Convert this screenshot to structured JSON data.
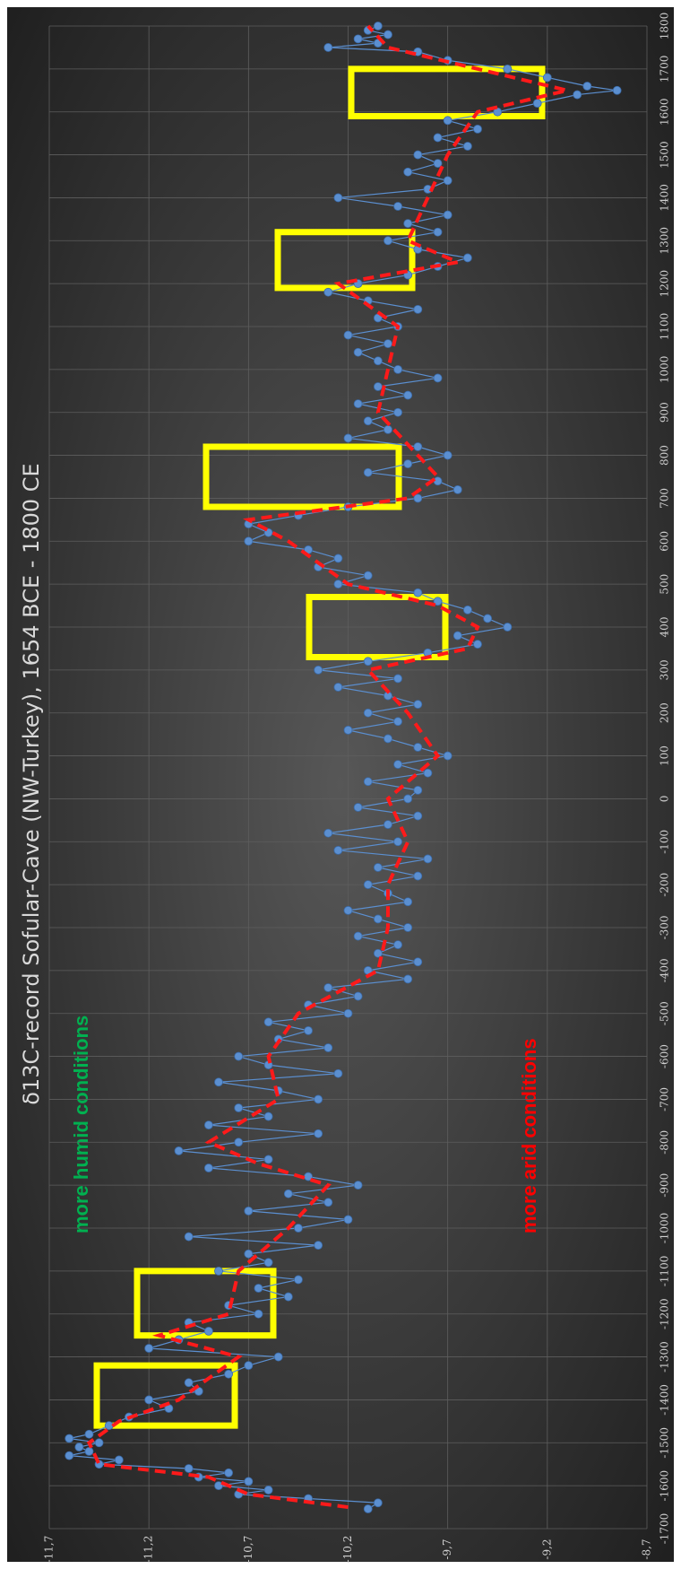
{
  "chart_data": {
    "type": "line",
    "title": "δ13C-record Sofular-Cave (NW-Turkey),  1654 BCE - 1800 CE",
    "annotations": [
      "more humid conditions",
      "more arid conditions"
    ],
    "xlim": [
      -1700,
      1800
    ],
    "xticks": [
      -1700,
      -1600,
      -1500,
      -1400,
      -1300,
      -1200,
      -1100,
      -1000,
      -900,
      -800,
      -700,
      -600,
      -500,
      -400,
      -300,
      -200,
      -100,
      0,
      100,
      200,
      300,
      400,
      500,
      600,
      700,
      800,
      900,
      1000,
      1100,
      1200,
      1300,
      1400,
      1500,
      1600,
      1700,
      1800
    ],
    "ylim": [
      -11.7,
      -8.7
    ],
    "y_reversed": true,
    "yticks": [
      {
        "value": -11.7,
        "label": "-11,7"
      },
      {
        "value": -11.2,
        "label": "-11,2"
      },
      {
        "value": -10.7,
        "label": "-10,7"
      },
      {
        "value": -10.2,
        "label": "-10,2"
      },
      {
        "value": -9.7,
        "label": "-9,7"
      },
      {
        "value": -9.2,
        "label": "-9,2"
      },
      {
        "value": -8.7,
        "label": "-8,7"
      }
    ],
    "grid": true,
    "series": [
      {
        "color": "#5b8fd0",
        "markers": true,
        "dashed": false,
        "x": [
          -1654,
          -1640,
          -1630,
          -1620,
          -1610,
          -1600,
          -1590,
          -1580,
          -1570,
          -1560,
          -1550,
          -1540,
          -1530,
          -1520,
          -1510,
          -1500,
          -1490,
          -1480,
          -1460,
          -1440,
          -1420,
          -1400,
          -1380,
          -1360,
          -1340,
          -1320,
          -1300,
          -1280,
          -1260,
          -1240,
          -1220,
          -1200,
          -1180,
          -1160,
          -1140,
          -1120,
          -1100,
          -1080,
          -1060,
          -1040,
          -1020,
          -1000,
          -980,
          -960,
          -940,
          -920,
          -900,
          -880,
          -860,
          -840,
          -820,
          -800,
          -780,
          -760,
          -740,
          -720,
          -700,
          -680,
          -660,
          -640,
          -620,
          -600,
          -580,
          -560,
          -540,
          -520,
          -500,
          -480,
          -460,
          -440,
          -420,
          -400,
          -380,
          -360,
          -340,
          -320,
          -300,
          -280,
          -260,
          -240,
          -220,
          -200,
          -180,
          -160,
          -140,
          -120,
          -100,
          -80,
          -60,
          -40,
          -20,
          0,
          20,
          40,
          60,
          80,
          100,
          120,
          140,
          160,
          180,
          200,
          220,
          240,
          260,
          280,
          300,
          320,
          340,
          360,
          380,
          400,
          420,
          440,
          460,
          480,
          500,
          520,
          540,
          560,
          580,
          600,
          620,
          640,
          660,
          680,
          700,
          720,
          740,
          760,
          780,
          800,
          820,
          840,
          860,
          880,
          900,
          920,
          940,
          960,
          980,
          1000,
          1020,
          1040,
          1060,
          1080,
          1100,
          1120,
          1140,
          1160,
          1180,
          1200,
          1220,
          1240,
          1260,
          1280,
          1300,
          1320,
          1340,
          1360,
          1380,
          1400,
          1420,
          1440,
          1460,
          1480,
          1500,
          1520,
          1540,
          1560,
          1580,
          1600,
          1620,
          1640,
          1650,
          1660,
          1680,
          1700,
          1720,
          1740,
          1750,
          1760,
          1770,
          1780,
          1790,
          1800
        ],
        "values": [
          -10.1,
          -10.05,
          -10.4,
          -10.75,
          -10.6,
          -10.85,
          -10.7,
          -10.95,
          -10.8,
          -11.0,
          -11.45,
          -11.35,
          -11.6,
          -11.5,
          -11.55,
          -11.45,
          -11.6,
          -11.5,
          -11.4,
          -11.3,
          -11.1,
          -11.2,
          -10.95,
          -11.0,
          -10.8,
          -10.7,
          -10.55,
          -11.2,
          -11.05,
          -10.9,
          -11.0,
          -10.65,
          -10.8,
          -10.5,
          -10.65,
          -10.45,
          -10.85,
          -10.6,
          -10.7,
          -10.35,
          -11.0,
          -10.45,
          -10.2,
          -10.7,
          -10.3,
          -10.5,
          -10.15,
          -10.4,
          -10.9,
          -10.6,
          -11.05,
          -10.75,
          -10.35,
          -10.9,
          -10.6,
          -10.75,
          -10.35,
          -10.55,
          -10.85,
          -10.25,
          -10.6,
          -10.75,
          -10.3,
          -10.55,
          -10.4,
          -10.6,
          -10.2,
          -10.4,
          -10.15,
          -10.3,
          -9.9,
          -10.1,
          -9.85,
          -10.05,
          -9.95,
          -10.15,
          -9.9,
          -10.05,
          -10.2,
          -9.9,
          -10.0,
          -10.1,
          -9.85,
          -10.05,
          -9.8,
          -10.25,
          -9.95,
          -10.3,
          -10.0,
          -9.85,
          -10.15,
          -9.9,
          -9.85,
          -10.1,
          -9.8,
          -9.95,
          -9.7,
          -9.85,
          -10.0,
          -10.2,
          -9.95,
          -10.1,
          -9.85,
          -10.0,
          -10.25,
          -9.95,
          -10.35,
          -10.1,
          -9.8,
          -9.55,
          -9.65,
          -9.4,
          -9.5,
          -9.6,
          -9.75,
          -9.85,
          -10.25,
          -10.1,
          -10.35,
          -10.25,
          -10.4,
          -10.7,
          -10.6,
          -10.7,
          -10.45,
          -10.2,
          -9.85,
          -9.65,
          -9.75,
          -10.1,
          -9.9,
          -9.7,
          -9.85,
          -10.2,
          -10.0,
          -10.1,
          -9.95,
          -10.15,
          -9.9,
          -10.05,
          -9.75,
          -9.95,
          -10.05,
          -10.15,
          -10.0,
          -10.2,
          -9.95,
          -10.05,
          -9.85,
          -10.1,
          -10.3,
          -10.15,
          -9.9,
          -9.75,
          -9.6,
          -9.85,
          -10.0,
          -9.75,
          -9.9,
          -9.7,
          -9.95,
          -10.25,
          -9.8,
          -9.7,
          -9.9,
          -9.75,
          -9.85,
          -9.6,
          -9.75,
          -9.55,
          -9.7,
          -9.45,
          -9.25,
          -9.05,
          -8.85,
          -9.0,
          -9.2,
          -9.4,
          -9.7,
          -9.85,
          -10.3,
          -10.05,
          -10.15,
          -10.0,
          -10.1,
          -10.05
        ]
      },
      {
        "color": "#ff1a1a",
        "markers": false,
        "dashed": true,
        "x": [
          -1650,
          -1620,
          -1580,
          -1550,
          -1500,
          -1450,
          -1400,
          -1300,
          -1250,
          -1200,
          -1100,
          -1000,
          -900,
          -850,
          -800,
          -700,
          -600,
          -500,
          -400,
          -300,
          -200,
          -100,
          0,
          100,
          200,
          300,
          350,
          400,
          450,
          500,
          600,
          650,
          700,
          750,
          800,
          900,
          1000,
          1100,
          1150,
          1200,
          1250,
          1300,
          1400,
          1500,
          1600,
          1650,
          1700,
          1750,
          1800
        ],
        "values": [
          -10.2,
          -10.7,
          -10.9,
          -11.45,
          -11.5,
          -11.35,
          -11.05,
          -10.75,
          -11.15,
          -10.8,
          -10.75,
          -10.5,
          -10.3,
          -10.65,
          -10.9,
          -10.55,
          -10.6,
          -10.45,
          -10.05,
          -10.0,
          -10.0,
          -9.9,
          -10.0,
          -9.75,
          -9.9,
          -10.1,
          -9.6,
          -9.55,
          -9.75,
          -10.2,
          -10.5,
          -10.7,
          -9.9,
          -9.75,
          -9.85,
          -10.05,
          -10.0,
          -9.95,
          -10.1,
          -10.25,
          -9.65,
          -9.9,
          -9.8,
          -9.7,
          -9.55,
          -9.1,
          -9.55,
          -10.0,
          -10.1
        ]
      }
    ]
  }
}
